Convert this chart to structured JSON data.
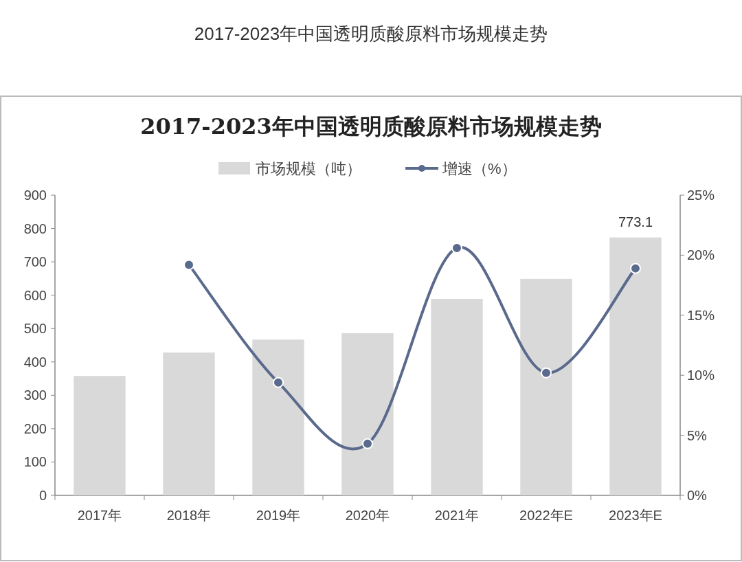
{
  "chart_data": {
    "type": "bar",
    "title": "2017-2023年中国透明质酸原料市场规模走势",
    "subtitle": "2017-2023年中国透明质酸原料市场规模走势",
    "categories": [
      "2017年",
      "2018年",
      "2019年",
      "2020年",
      "2021年",
      "2022年E",
      "2023年E"
    ],
    "series": [
      {
        "name": "市场规模（吨）",
        "color": "#d9d9d9",
        "values": [
          358,
          428,
          467,
          486,
          589,
          649,
          773.1
        ],
        "value_labels": [
          null,
          null,
          null,
          null,
          null,
          null,
          "773.1"
        ]
      },
      {
        "name": "增速（%）",
        "type": "line",
        "axis": "y2",
        "color": "#5a6a8c",
        "values": [
          null,
          19.2,
          9.4,
          4.3,
          20.6,
          10.2,
          18.9
        ]
      }
    ],
    "ylim": [
      0,
      900
    ],
    "yticks": [
      0,
      100,
      200,
      300,
      400,
      500,
      600,
      700,
      800,
      900
    ],
    "y2lim": [
      0,
      25
    ],
    "y2ticks": [
      {
        "value": 0,
        "label": "0%"
      },
      {
        "value": 5,
        "label": "5%"
      },
      {
        "value": 10,
        "label": "10%"
      },
      {
        "value": 15,
        "label": "15%"
      },
      {
        "value": 20,
        "label": "20%"
      },
      {
        "value": 25,
        "label": "25%"
      }
    ],
    "legend": "top",
    "marker": "circle",
    "line_style": "solid",
    "grid": false
  }
}
